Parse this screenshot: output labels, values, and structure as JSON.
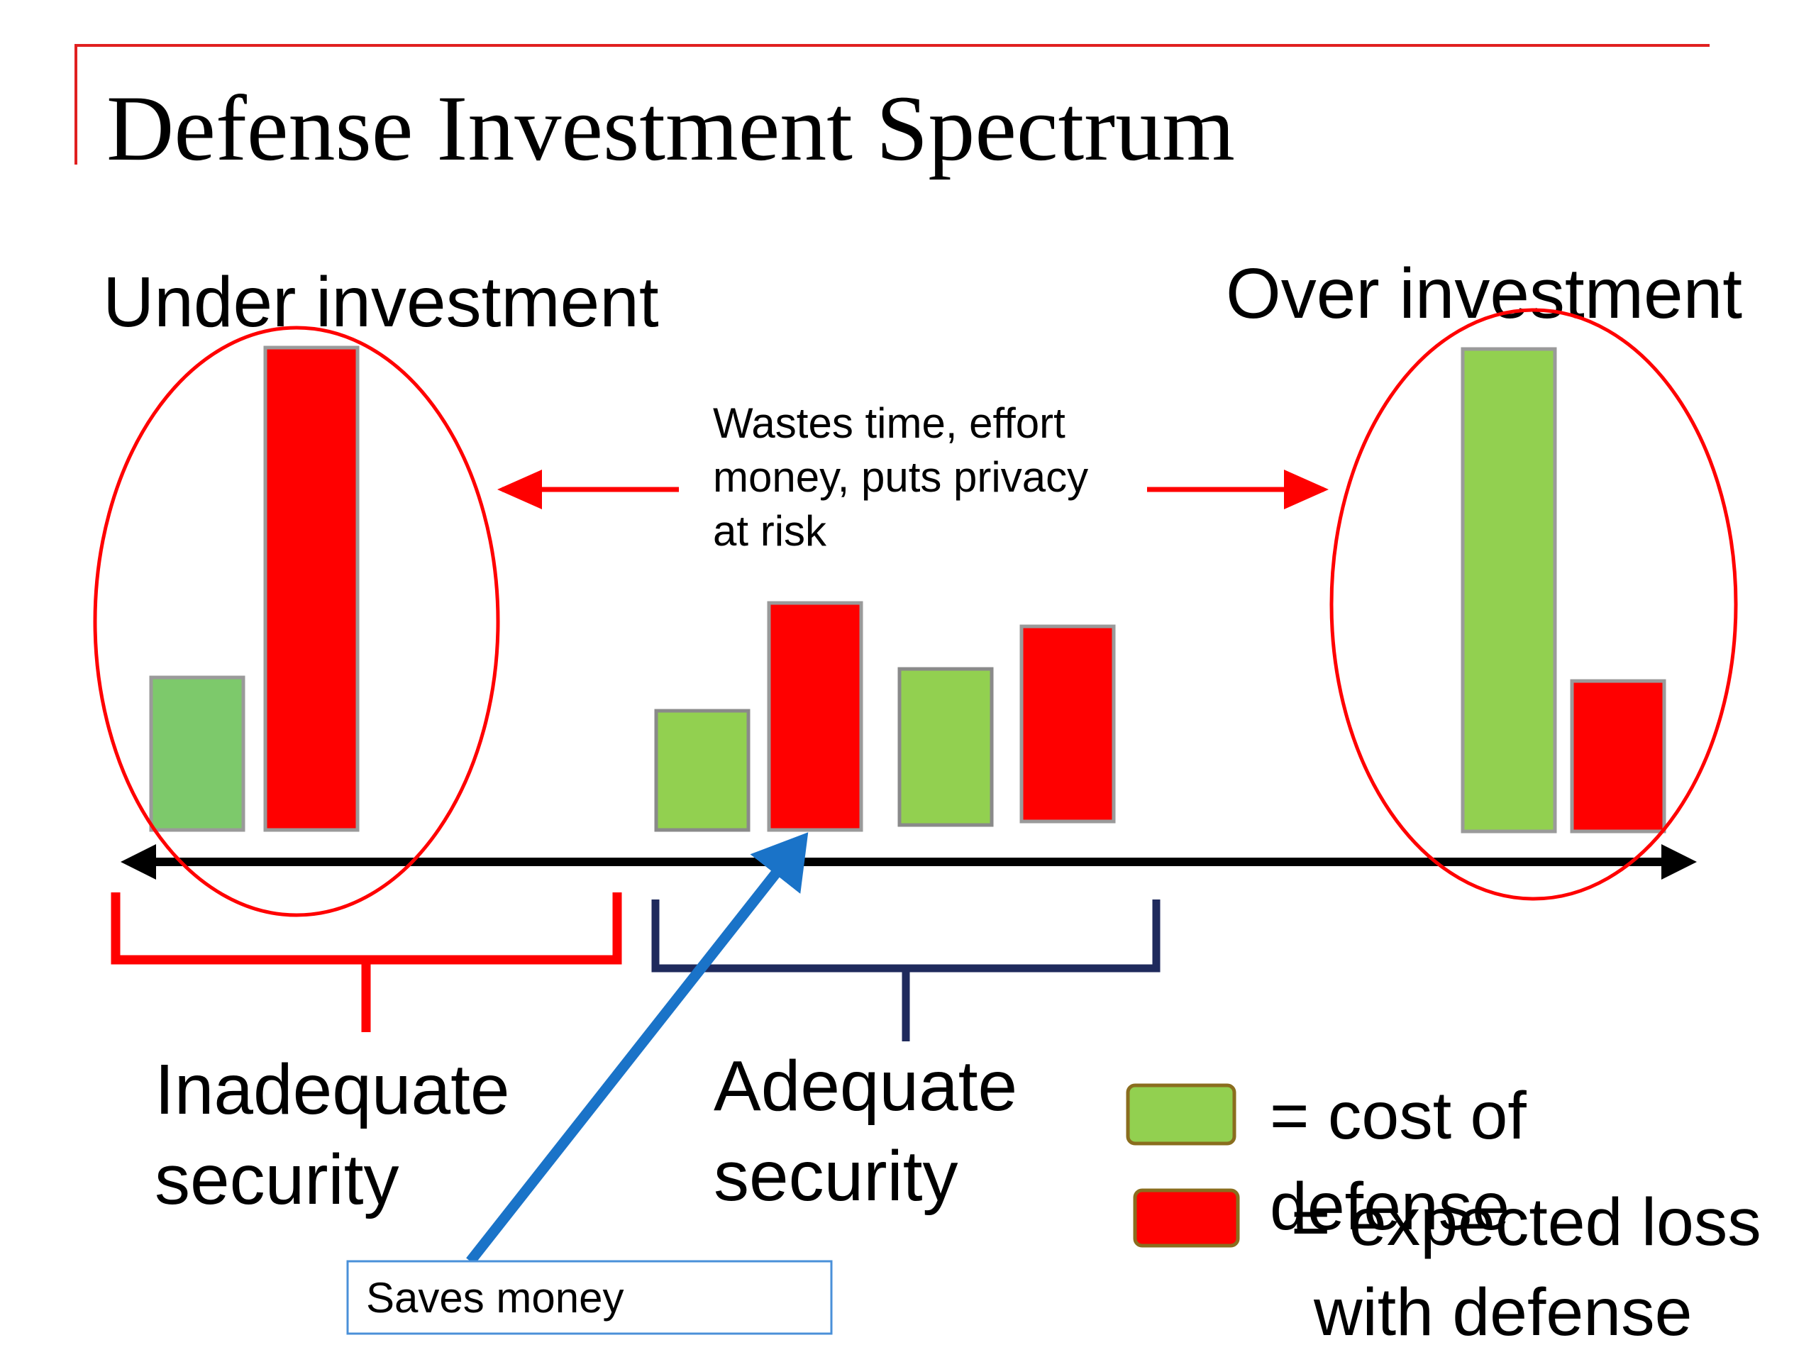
{
  "title": "Defense Investment Spectrum",
  "labels": {
    "under": "Under investment",
    "over": "Over investment",
    "wastes": [
      "Wastes time, effort",
      "money, puts privacy",
      "at risk"
    ],
    "inadequate": [
      "Inadequate",
      "security"
    ],
    "adequate": [
      "Adequate",
      "security"
    ],
    "saves": "Saves money"
  },
  "legend": [
    {
      "label": [
        "= cost of",
        "defense"
      ],
      "color": "#92d050"
    },
    {
      "label": [
        "= expected loss",
        "with defense"
      ],
      "color": "#ff0000"
    }
  ],
  "colors": {
    "cost": "#92d050",
    "loss": "#ff0000",
    "accent": "#ff0000",
    "bracket_adequate": "#1f2a5c",
    "saves_arrow": "#1a73c8"
  }
}
